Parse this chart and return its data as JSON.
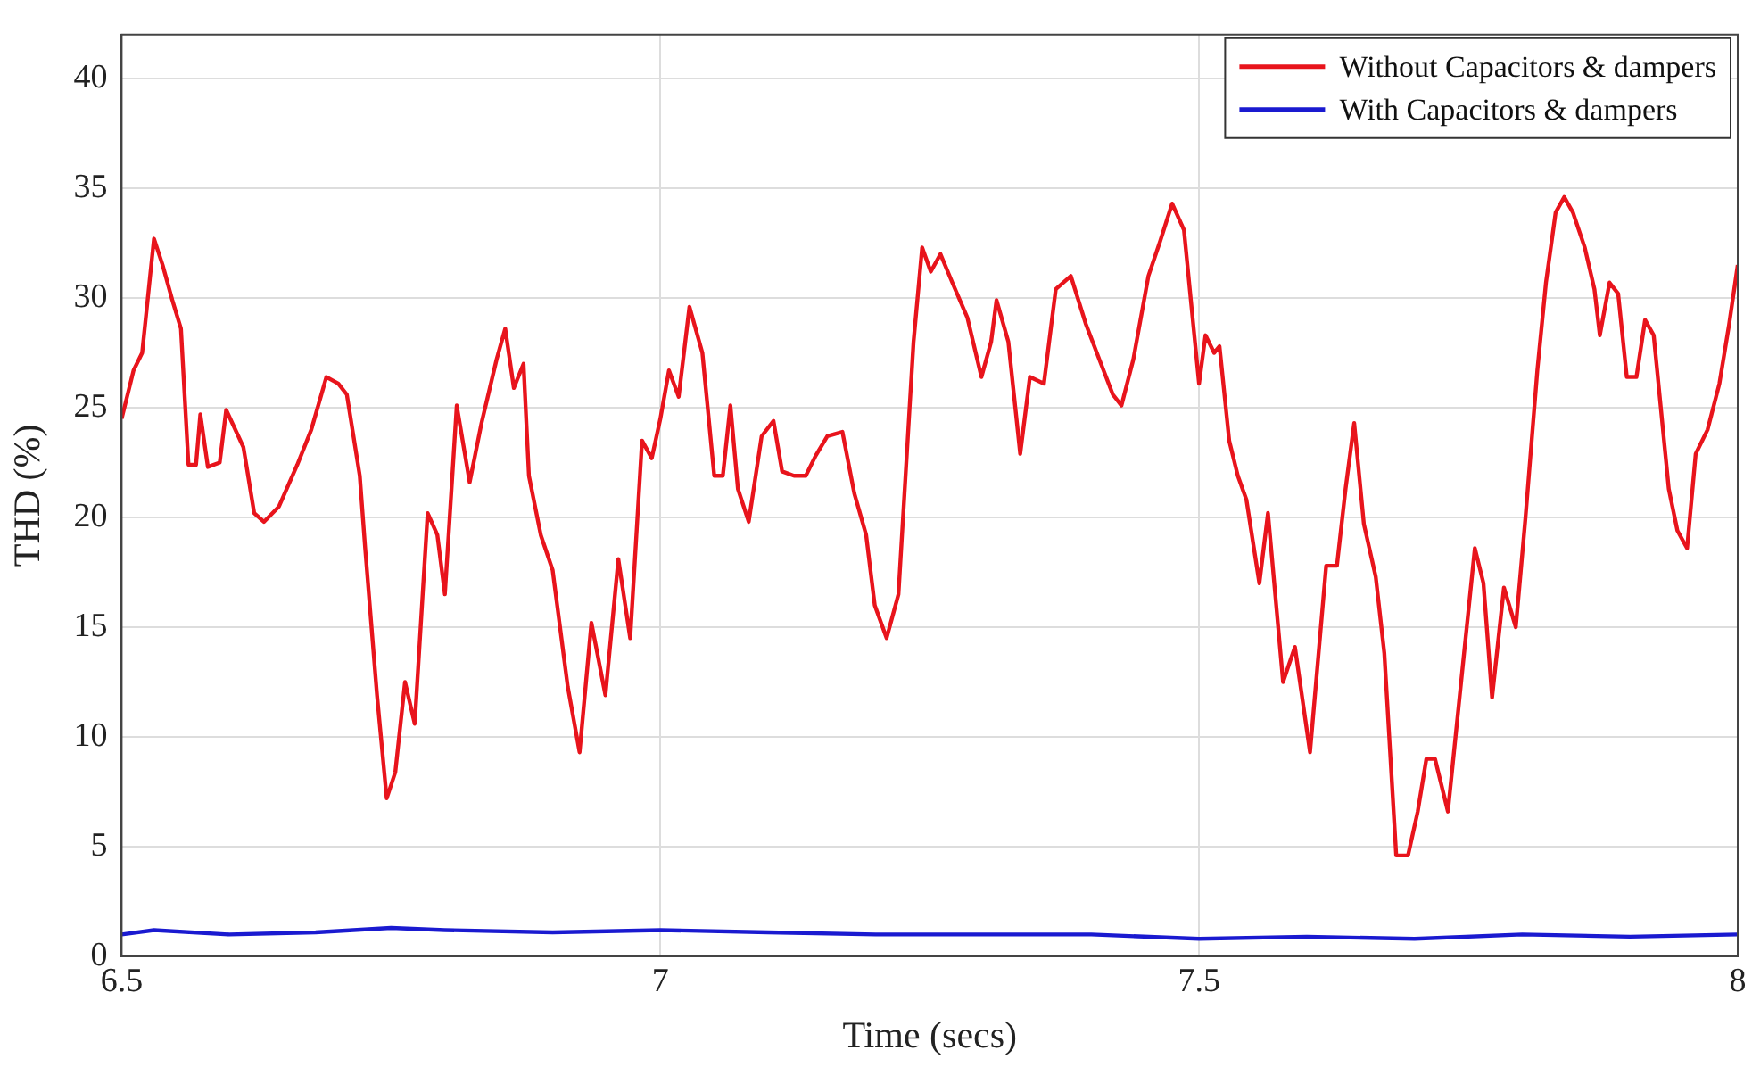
{
  "chart_data": {
    "type": "line",
    "xlabel": "Time (secs)",
    "ylabel": "THD (%)",
    "xlim": [
      6.5,
      8
    ],
    "xticks": [
      6.5,
      7,
      7.5,
      8
    ],
    "ylim": [
      0,
      42
    ],
    "yticks": [
      0,
      5,
      10,
      15,
      20,
      25,
      30,
      35,
      40
    ],
    "grid": true,
    "legend": "top right",
    "marker": "none",
    "line_style": "solid",
    "series": [
      {
        "name": "Without Capacitors & dampers",
        "color": "#e8141c",
        "x": [
          6.5,
          6.511,
          6.519,
          6.53,
          6.538,
          6.547,
          6.555,
          6.562,
          6.569,
          6.573,
          6.58,
          6.591,
          6.597,
          6.613,
          6.623,
          6.632,
          6.646,
          6.663,
          6.676,
          6.69,
          6.701,
          6.709,
          6.721,
          6.726,
          6.737,
          6.746,
          6.754,
          6.763,
          6.772,
          6.784,
          6.793,
          6.8,
          6.811,
          6.823,
          6.834,
          6.848,
          6.856,
          6.864,
          6.873,
          6.878,
          6.889,
          6.9,
          6.914,
          6.925,
          6.936,
          6.949,
          6.961,
          6.972,
          6.983,
          6.992,
          7.0,
          7.008,
          7.017,
          7.027,
          7.039,
          7.05,
          7.058,
          7.065,
          7.072,
          7.082,
          7.094,
          7.105,
          7.113,
          7.124,
          7.135,
          7.144,
          7.155,
          7.169,
          7.18,
          7.191,
          7.199,
          7.21,
          7.221,
          7.235,
          7.243,
          7.251,
          7.26,
          7.271,
          7.285,
          7.298,
          7.307,
          7.312,
          7.323,
          7.334,
          7.343,
          7.356,
          7.367,
          7.381,
          7.395,
          7.409,
          7.42,
          7.428,
          7.439,
          7.453,
          7.464,
          7.475,
          7.486,
          7.5,
          7.506,
          7.514,
          7.519,
          7.528,
          7.536,
          7.544,
          7.556,
          7.564,
          7.578,
          7.589,
          7.603,
          7.618,
          7.628,
          7.636,
          7.644,
          7.653,
          7.664,
          7.672,
          7.683,
          7.694,
          7.703,
          7.711,
          7.719,
          7.731,
          7.742,
          7.756,
          7.764,
          7.772,
          7.783,
          7.794,
          7.803,
          7.814,
          7.822,
          7.831,
          7.839,
          7.847,
          7.858,
          7.867,
          7.872,
          7.881,
          7.889,
          7.897,
          7.906,
          7.914,
          7.922,
          7.936,
          7.944,
          7.953,
          7.961,
          7.972,
          7.983,
          7.992,
          8.0
        ],
        "values": [
          24.5,
          26.7,
          27.5,
          32.7,
          31.5,
          29.9,
          28.6,
          22.4,
          22.4,
          24.7,
          22.3,
          22.5,
          24.9,
          23.2,
          20.2,
          19.8,
          20.5,
          22.4,
          24.0,
          26.4,
          26.1,
          25.6,
          21.9,
          18.6,
          11.9,
          7.2,
          8.4,
          12.5,
          10.6,
          20.2,
          19.2,
          16.5,
          25.1,
          21.6,
          24.3,
          27.2,
          28.6,
          25.9,
          27.0,
          21.9,
          19.2,
          17.6,
          12.3,
          9.3,
          15.2,
          11.9,
          18.1,
          14.5,
          23.5,
          22.7,
          24.5,
          26.7,
          25.5,
          29.6,
          27.5,
          21.9,
          21.9,
          25.1,
          21.3,
          19.8,
          23.7,
          24.4,
          22.1,
          21.9,
          21.9,
          22.8,
          23.7,
          23.9,
          21.1,
          19.2,
          16.0,
          14.5,
          16.5,
          28.0,
          32.3,
          31.2,
          32.0,
          30.7,
          29.1,
          26.4,
          28.0,
          29.9,
          28.0,
          22.9,
          26.4,
          26.1,
          30.4,
          31.0,
          28.8,
          27.0,
          25.6,
          25.1,
          27.2,
          31.0,
          32.6,
          34.3,
          33.1,
          26.1,
          28.3,
          27.5,
          27.8,
          23.5,
          21.9,
          20.8,
          17.0,
          20.2,
          12.5,
          14.1,
          9.3,
          17.8,
          17.8,
          21.3,
          24.3,
          19.7,
          17.3,
          13.8,
          4.6,
          4.6,
          6.6,
          9.0,
          9.0,
          6.6,
          11.9,
          18.6,
          17.0,
          11.8,
          16.8,
          15.0,
          20.0,
          26.7,
          30.7,
          33.9,
          34.6,
          33.9,
          32.3,
          30.4,
          28.3,
          30.7,
          30.2,
          26.4,
          26.4,
          29.0,
          28.3,
          21.3,
          19.4,
          18.6,
          22.9,
          24.0,
          26.1,
          28.8,
          31.5
        ]
      },
      {
        "name": "With Capacitors & dampers",
        "color": "#1a1ad0",
        "x": [
          6.5,
          6.53,
          6.6,
          6.68,
          6.75,
          6.8,
          6.9,
          7.0,
          7.1,
          7.2,
          7.3,
          7.4,
          7.5,
          7.6,
          7.7,
          7.8,
          7.9,
          8.0
        ],
        "values": [
          1.0,
          1.2,
          1.0,
          1.1,
          1.3,
          1.2,
          1.1,
          1.2,
          1.1,
          1.0,
          1.0,
          1.0,
          0.8,
          0.9,
          0.8,
          1.0,
          0.9,
          1.0
        ]
      }
    ]
  }
}
